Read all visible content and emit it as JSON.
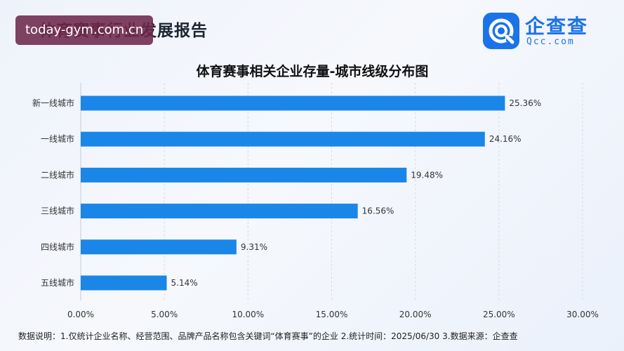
{
  "header": {
    "title": "体育赛事行业发展报告",
    "watermark": "today-gym.com.cn"
  },
  "logo": {
    "name": "企查查",
    "domain": "Qcc.com",
    "brand_color": "#1a73e8"
  },
  "chart_data": {
    "type": "bar",
    "orientation": "horizontal",
    "title": "体育赛事相关企业存量-城市线级分布图",
    "categories": [
      "新一线城市",
      "一线城市",
      "二线城市",
      "三线城市",
      "四线城市",
      "五线城市"
    ],
    "values": [
      25.36,
      24.16,
      19.48,
      16.56,
      9.31,
      5.14
    ],
    "data_labels": [
      "25.36%",
      "24.16%",
      "19.48%",
      "16.56%",
      "9.31%",
      "5.14%"
    ],
    "xlim": [
      0,
      30
    ],
    "x_ticks": [
      "0.00%",
      "5.00%",
      "10.00%",
      "15.00%",
      "20.00%",
      "25.00%",
      "30.00%"
    ],
    "bar_color": "#1a86e8",
    "grid": true,
    "xlabel": "",
    "ylabel": ""
  },
  "footnote": "数据说明：1.仅统计企业名称、经营范围、品牌产品名称包含关键词“体育赛事”的企业   2.统计时间：2025/06/30   3.数据来源：企查查"
}
